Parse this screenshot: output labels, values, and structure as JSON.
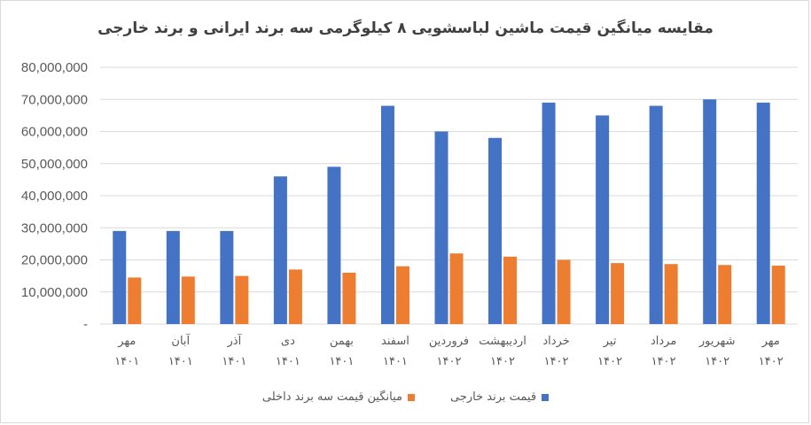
{
  "chart_data": {
    "type": "bar",
    "title": "مقایسه میانگین قیمت ماشین لباسشویی ۸ کیلوگرمی سه برند ایرانی و برند خارجی",
    "categories": [
      [
        "مهر",
        "۱۴۰۱"
      ],
      [
        "آبان",
        "۱۴۰۱"
      ],
      [
        "آذر",
        "۱۴۰۱"
      ],
      [
        "دی",
        "۱۴۰۱"
      ],
      [
        "بهمن",
        "۱۴۰۱"
      ],
      [
        "اسفند",
        "۱۴۰۱"
      ],
      [
        "فروردین",
        "۱۴۰۲"
      ],
      [
        "اردیبهشت",
        "۱۴۰۲"
      ],
      [
        "خرداد",
        "۱۴۰۲"
      ],
      [
        "تیر",
        "۱۴۰۲"
      ],
      [
        "مرداد",
        "۱۴۰۲"
      ],
      [
        "شهریور",
        "۱۴۰۲"
      ],
      [
        "مهر",
        "۱۴۰۲"
      ]
    ],
    "series": [
      {
        "name": "قیمت برند خارجی",
        "color": "#4472c4",
        "values": [
          29000000,
          29000000,
          29000000,
          46000000,
          49000000,
          68000000,
          60000000,
          58000000,
          69000000,
          65000000,
          68000000,
          70000000,
          69000000
        ]
      },
      {
        "name": "میانگین قیمت سه برند داخلی",
        "color": "#ed7d31",
        "values": [
          14500000,
          14800000,
          15000000,
          17000000,
          16000000,
          18000000,
          22000000,
          21000000,
          20000000,
          19000000,
          18700000,
          18400000,
          18200000
        ]
      }
    ],
    "ylim": [
      0,
      80000000
    ],
    "yticks": [
      "-",
      "10,000,000",
      "20,000,000",
      "30,000,000",
      "40,000,000",
      "50,000,000",
      "60,000,000",
      "70,000,000",
      "80,000,000"
    ],
    "grid": true,
    "legend_position": "bottom"
  }
}
